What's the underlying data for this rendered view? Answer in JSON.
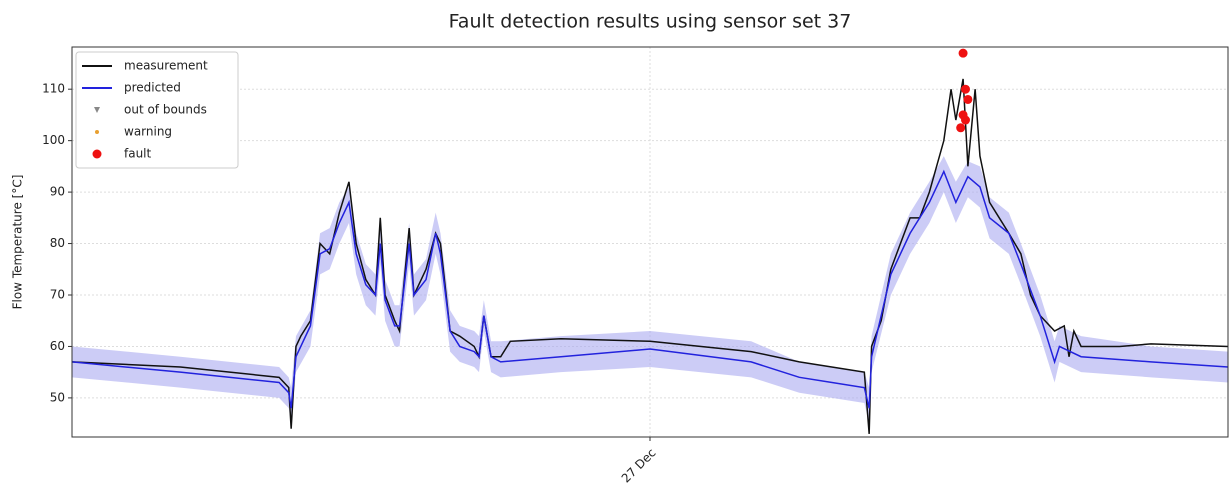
{
  "chart_data": {
    "type": "line",
    "title": "Fault detection results using sensor set 37",
    "y_label": "Flow Temperature [°C]",
    "xlim": [
      0,
      48
    ],
    "ylim": [
      42.4,
      118.2
    ],
    "xticks": [
      {
        "value": 24,
        "label": "27 Dec"
      }
    ],
    "yticks": [
      50,
      60,
      70,
      80,
      90,
      100,
      110
    ],
    "grid": true,
    "legend": "upper left",
    "band": {
      "color": "#aaaaf0",
      "x": [
        0,
        4.5,
        8.6,
        9.0,
        9.1,
        9.3,
        9.9,
        10.3,
        10.7,
        11.1,
        11.5,
        11.8,
        12.2,
        12.6,
        12.8,
        13.0,
        13.4,
        13.6,
        14.0,
        14.2,
        14.7,
        15.1,
        15.3,
        15.7,
        16.1,
        16.7,
        16.9,
        17.1,
        17.4,
        17.8,
        20.3,
        24.0,
        28.2,
        30.2,
        32.9,
        33.1,
        33.2,
        34.0,
        34.8,
        35.6,
        36.2,
        36.7,
        37.2,
        37.7,
        38.1,
        38.9,
        39.4,
        40.2,
        40.8,
        41.0,
        41.9,
        44.8,
        48
      ],
      "lower": [
        54,
        52,
        50,
        48,
        45,
        55,
        60,
        74,
        75,
        80,
        84,
        74,
        68,
        66,
        76,
        65,
        60,
        60,
        76,
        66,
        69,
        78,
        74,
        59,
        57,
        56,
        55,
        63,
        55,
        54,
        55,
        56,
        54,
        51,
        49,
        45,
        55,
        70,
        78,
        84,
        90,
        84,
        89,
        87,
        81,
        78,
        72,
        62,
        53,
        57,
        55,
        54,
        53
      ],
      "upper": [
        60,
        58,
        56,
        54,
        52,
        62,
        67,
        82,
        83,
        88,
        91,
        82,
        76,
        74,
        84,
        73,
        68,
        68,
        84,
        74,
        77,
        86,
        82,
        67,
        64,
        63,
        62,
        69,
        61,
        61,
        62,
        63,
        61,
        57,
        55,
        52,
        62,
        78,
        86,
        92,
        97,
        92,
        96,
        95,
        89,
        86,
        80,
        70,
        61,
        64,
        62,
        60,
        59
      ]
    },
    "series": [
      {
        "name": "measurement",
        "color": "#111111",
        "kind": "line",
        "x": [
          0,
          4.5,
          8.6,
          9.0,
          9.1,
          9.3,
          9.5,
          9.9,
          10.3,
          10.7,
          11.1,
          11.5,
          11.8,
          12.2,
          12.6,
          12.8,
          13.0,
          13.4,
          13.6,
          14.0,
          14.2,
          14.7,
          15.1,
          15.3,
          15.7,
          16.1,
          16.7,
          16.9,
          17.1,
          17.4,
          17.8,
          18.2,
          20.3,
          24.0,
          28.2,
          30.2,
          32.9,
          33.1,
          33.2,
          33.6,
          34.0,
          34.4,
          34.8,
          35.2,
          35.6,
          36.2,
          36.5,
          36.7,
          37.0,
          37.2,
          37.5,
          37.7,
          38.1,
          38.5,
          38.9,
          39.4,
          39.8,
          40.2,
          40.8,
          41.2,
          41.4,
          41.6,
          41.9,
          43.5,
          44.8,
          48
        ],
        "values": [
          57,
          56,
          54,
          52,
          44,
          60,
          62,
          65,
          80,
          78,
          86,
          92,
          80,
          73,
          70,
          85,
          70,
          65,
          63,
          83,
          70,
          75,
          82,
          80,
          63,
          62,
          60,
          58,
          66,
          58,
          58,
          61,
          61.5,
          61,
          59,
          57,
          55,
          43,
          60,
          65,
          75,
          80,
          85,
          85,
          90,
          100,
          110,
          104,
          112,
          95,
          110,
          97,
          88,
          85,
          82,
          78,
          70,
          66,
          63,
          64,
          58,
          63,
          60,
          60,
          60.5,
          60
        ]
      },
      {
        "name": "predicted",
        "color": "#2222dd",
        "kind": "line",
        "x": [
          0,
          4.5,
          8.6,
          9.0,
          9.1,
          9.3,
          9.9,
          10.3,
          10.7,
          11.1,
          11.5,
          11.8,
          12.2,
          12.6,
          12.8,
          13.0,
          13.4,
          13.6,
          14.0,
          14.2,
          14.7,
          15.1,
          15.3,
          15.7,
          16.1,
          16.7,
          16.9,
          17.1,
          17.4,
          17.8,
          20.3,
          24.0,
          28.2,
          30.2,
          32.9,
          33.1,
          33.2,
          34.0,
          34.8,
          35.6,
          36.2,
          36.7,
          37.2,
          37.7,
          38.1,
          38.9,
          39.4,
          40.2,
          40.8,
          41.0,
          41.9,
          44.8,
          48
        ],
        "values": [
          57,
          55,
          53,
          51,
          48,
          58,
          64,
          78,
          79,
          84,
          88,
          78,
          72,
          70,
          80,
          69,
          64,
          64,
          80,
          70,
          73,
          82,
          78,
          63,
          60,
          59,
          58,
          66,
          58,
          57,
          58,
          59.5,
          57,
          54,
          52,
          48,
          58,
          74,
          82,
          88,
          94,
          88,
          93,
          91,
          85,
          82,
          76,
          66,
          57,
          60,
          58,
          57,
          56
        ]
      },
      {
        "name": "out of bounds",
        "color": "#888888",
        "kind": "tri",
        "x": [],
        "values": []
      },
      {
        "name": "warning",
        "color": "#e8a030",
        "kind": "dot",
        "x": [],
        "values": []
      },
      {
        "name": "fault",
        "color": "#ee1111",
        "kind": "point",
        "x": [
          37.0,
          37.1,
          37.2,
          37.0,
          36.9,
          37.1
        ],
        "values": [
          117,
          110,
          108,
          105,
          102.5,
          104
        ]
      }
    ]
  }
}
